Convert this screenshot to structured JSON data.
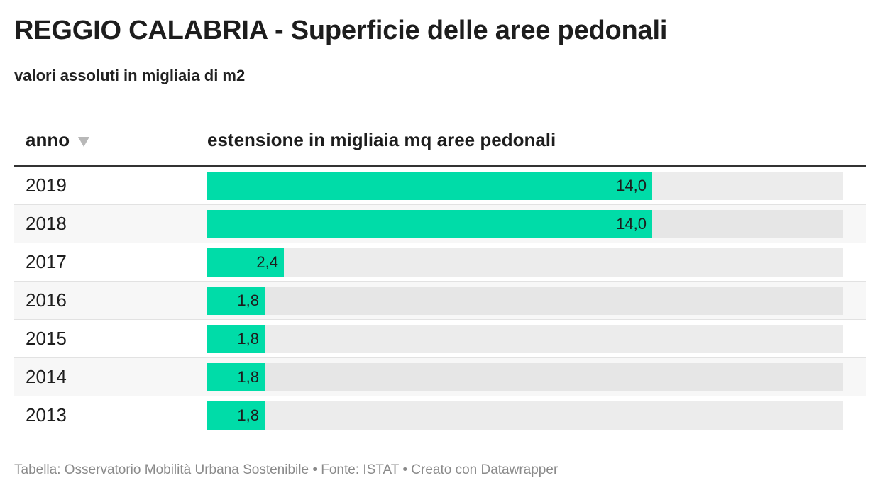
{
  "header": {
    "title": "REGGIO CALABRIA - Superficie delle aree pedonali",
    "subtitle": "valori assoluti in migliaia di m2"
  },
  "table": {
    "columns": {
      "year": "anno",
      "value": "estensione in migliaia mq aree pedonali"
    },
    "sort_icon": "triangle-down-icon"
  },
  "chart_data": {
    "type": "bar",
    "orientation": "horizontal",
    "categories": [
      "2019",
      "2018",
      "2017",
      "2016",
      "2015",
      "2014",
      "2013"
    ],
    "values": [
      14.0,
      14.0,
      2.4,
      1.8,
      1.8,
      1.8,
      1.8
    ],
    "value_labels": [
      "14,0",
      "14,0",
      "2,4",
      "1,8",
      "1,8",
      "1,8",
      "1,8"
    ],
    "xlim": [
      0,
      20
    ],
    "bar_color": "#00dca8",
    "track_color": "#ececec"
  },
  "footer": {
    "text": "Tabella: Osservatorio Mobilità Urbana Sostenibile • Fonte: ISTAT • Creato con Datawrapper"
  }
}
